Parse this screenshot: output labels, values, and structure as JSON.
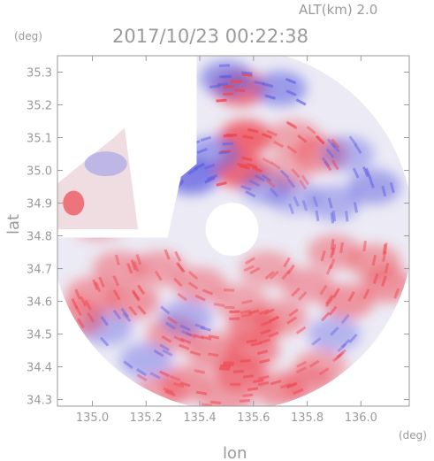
{
  "header": {
    "altitude_label": "ALT(km) 2.0",
    "timestamp": "2017/10/23 00:22:38"
  },
  "chart_data": {
    "type": "heatmap",
    "title": "2017/10/23 00:22:38",
    "subtitle": "ALT(km) 2.0",
    "xlabel": "lon",
    "ylabel": "lat",
    "x_unit": "(deg)",
    "y_unit": "(deg)",
    "xlim": [
      134.87,
      136.18
    ],
    "ylim": [
      34.28,
      35.35
    ],
    "x_ticks": [
      "135.0",
      "135.2",
      "135.4",
      "135.6",
      "135.8",
      "136.0"
    ],
    "x_tick_values": [
      135.0,
      135.2,
      135.4,
      135.6,
      135.8,
      136.0
    ],
    "y_ticks": [
      "34.3",
      "34.4",
      "34.5",
      "34.6",
      "34.7",
      "34.8",
      "34.9",
      "35.0",
      "35.1",
      "35.2",
      "35.3"
    ],
    "y_tick_values": [
      34.3,
      34.4,
      34.5,
      34.6,
      34.7,
      34.8,
      34.9,
      35.0,
      35.1,
      35.2,
      35.3
    ],
    "radar_center": [
      135.52,
      34.82
    ],
    "colors": {
      "positive": "#f08080",
      "negative": "#8a8ae8",
      "neutral": "#ecebf5",
      "axis": "#9a9a9a"
    },
    "cells": [
      {
        "lon": 135.55,
        "lat": 35.25,
        "v": 0.85
      },
      {
        "lon": 135.57,
        "lat": 35.1,
        "v": 0.9
      },
      {
        "lon": 135.55,
        "lat": 35.0,
        "v": 0.9
      },
      {
        "lon": 135.5,
        "lat": 35.28,
        "v": -0.6
      },
      {
        "lon": 135.7,
        "lat": 35.25,
        "v": -0.55
      },
      {
        "lon": 135.75,
        "lat": 35.1,
        "v": 0.3
      },
      {
        "lon": 135.85,
        "lat": 35.05,
        "v": 0.5
      },
      {
        "lon": 135.95,
        "lat": 35.05,
        "v": -0.3
      },
      {
        "lon": 136.05,
        "lat": 34.95,
        "v": -0.45
      },
      {
        "lon": 135.9,
        "lat": 34.9,
        "v": -0.3
      },
      {
        "lon": 135.75,
        "lat": 34.92,
        "v": -0.2
      },
      {
        "lon": 135.37,
        "lat": 34.98,
        "v": -0.85
      },
      {
        "lon": 135.45,
        "lat": 35.05,
        "v": -0.5
      },
      {
        "lon": 135.65,
        "lat": 34.95,
        "v": -0.35
      },
      {
        "lon": 135.72,
        "lat": 35.0,
        "v": 0.2
      },
      {
        "lon": 135.02,
        "lat": 35.05,
        "v": -0.35
      },
      {
        "lon": 135.1,
        "lat": 35.0,
        "v": -0.45
      },
      {
        "lon": 134.92,
        "lat": 34.9,
        "v": 0.85
      },
      {
        "lon": 135.0,
        "lat": 34.93,
        "v": 0.45
      },
      {
        "lon": 135.1,
        "lat": 34.88,
        "v": 0.35
      },
      {
        "lon": 135.02,
        "lat": 34.84,
        "v": 0.25
      },
      {
        "lon": 135.9,
        "lat": 34.75,
        "v": 0.35
      },
      {
        "lon": 136.05,
        "lat": 34.72,
        "v": 0.4
      },
      {
        "lon": 136.1,
        "lat": 34.65,
        "v": 0.45
      },
      {
        "lon": 135.95,
        "lat": 34.6,
        "v": 0.45
      },
      {
        "lon": 135.8,
        "lat": 34.65,
        "v": 0.35
      },
      {
        "lon": 135.65,
        "lat": 34.7,
        "v": 0.3
      },
      {
        "lon": 135.7,
        "lat": 34.55,
        "v": 0.4
      },
      {
        "lon": 135.6,
        "lat": 34.45,
        "v": 0.5
      },
      {
        "lon": 135.55,
        "lat": 34.38,
        "v": 0.7
      },
      {
        "lon": 135.45,
        "lat": 34.45,
        "v": 0.45
      },
      {
        "lon": 135.3,
        "lat": 34.5,
        "v": 0.4
      },
      {
        "lon": 135.2,
        "lat": 34.42,
        "v": -0.3
      },
      {
        "lon": 135.35,
        "lat": 34.35,
        "v": 0.45
      },
      {
        "lon": 135.7,
        "lat": 34.33,
        "v": 0.45
      },
      {
        "lon": 135.85,
        "lat": 34.4,
        "v": 0.3
      },
      {
        "lon": 135.9,
        "lat": 34.5,
        "v": -0.25
      },
      {
        "lon": 135.15,
        "lat": 34.6,
        "v": 0.45
      },
      {
        "lon": 135.0,
        "lat": 34.62,
        "v": 0.4
      },
      {
        "lon": 135.05,
        "lat": 34.52,
        "v": -0.3
      },
      {
        "lon": 134.95,
        "lat": 34.55,
        "v": 0.4
      },
      {
        "lon": 135.25,
        "lat": 34.7,
        "v": 0.35
      },
      {
        "lon": 135.4,
        "lat": 34.65,
        "v": 0.35
      },
      {
        "lon": 135.55,
        "lat": 34.6,
        "v": 0.3
      },
      {
        "lon": 135.1,
        "lat": 34.7,
        "v": 0.35
      },
      {
        "lon": 135.35,
        "lat": 34.55,
        "v": -0.3
      },
      {
        "lon": 135.6,
        "lat": 34.52,
        "v": 0.6
      },
      {
        "lon": 135.5,
        "lat": 34.3,
        "v": 0.35
      },
      {
        "lon": 135.25,
        "lat": 34.32,
        "v": 0.3
      },
      {
        "lon": 135.8,
        "lat": 34.35,
        "v": 0.25
      }
    ]
  }
}
